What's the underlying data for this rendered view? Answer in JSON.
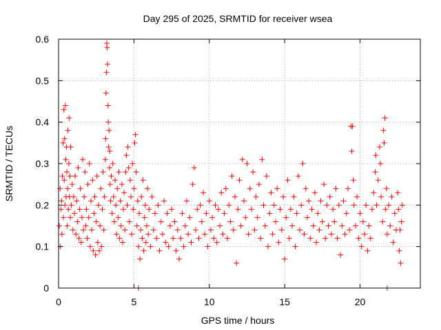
{
  "chart_data": {
    "type": "scatter",
    "title": "Day 295 of 2025, SRMTID for receiver wsea",
    "xlabel": "GPS time / hours",
    "ylabel": "SRMTID / TECUs",
    "xlim": [
      0,
      24
    ],
    "ylim": [
      0,
      0.6
    ],
    "xticks": [
      0,
      5,
      10,
      15,
      20
    ],
    "xtick_labels": [
      "0",
      "5",
      "10",
      "15",
      "20"
    ],
    "yticks": [
      0,
      0.1,
      0.2,
      0.3,
      0.4,
      0.5,
      0.6
    ],
    "ytick_labels": [
      "0",
      "0.1",
      "0.2",
      "0.3",
      "0.4",
      "0.5",
      "0.6"
    ],
    "grid": true,
    "marker": "+",
    "series": [
      {
        "name": "SRMTID",
        "color": "#ff0000",
        "points": [
          [
            0.05,
            0.15
          ],
          [
            0.1,
            0.24
          ],
          [
            0.12,
            0.1
          ],
          [
            0.15,
            0.19
          ],
          [
            0.2,
            0.21
          ],
          [
            0.22,
            0.13
          ],
          [
            0.25,
            0.27
          ],
          [
            0.3,
            0.35
          ],
          [
            0.32,
            0.17
          ],
          [
            0.35,
            0.43
          ],
          [
            0.38,
            0.26
          ],
          [
            0.4,
            0.36
          ],
          [
            0.42,
            0.2
          ],
          [
            0.45,
            0.44
          ],
          [
            0.48,
            0.31
          ],
          [
            0.5,
            0.22
          ],
          [
            0.52,
            0.34
          ],
          [
            0.55,
            0.28
          ],
          [
            0.58,
            0.15
          ],
          [
            0.6,
            0.24
          ],
          [
            0.62,
            0.38
          ],
          [
            0.65,
            0.19
          ],
          [
            0.68,
            0.3
          ],
          [
            0.7,
            0.41
          ],
          [
            0.72,
            0.22
          ],
          [
            0.75,
            0.27
          ],
          [
            0.78,
            0.17
          ],
          [
            0.8,
            0.34
          ],
          [
            0.85,
            0.2
          ],
          [
            0.9,
            0.25
          ],
          [
            0.95,
            0.14
          ],
          [
            1.0,
            0.22
          ],
          [
            1.05,
            0.18
          ],
          [
            1.1,
            0.27
          ],
          [
            1.15,
            0.13
          ],
          [
            1.2,
            0.21
          ],
          [
            1.25,
            0.16
          ],
          [
            1.3,
            0.29
          ],
          [
            1.35,
            0.12
          ],
          [
            1.4,
            0.19
          ],
          [
            1.45,
            0.24
          ],
          [
            1.5,
            0.11
          ],
          [
            1.55,
            0.17
          ],
          [
            1.6,
            0.31
          ],
          [
            1.65,
            0.14
          ],
          [
            1.7,
            0.22
          ],
          [
            1.75,
            0.28
          ],
          [
            1.8,
            0.15
          ],
          [
            1.85,
            0.19
          ],
          [
            1.9,
            0.12
          ],
          [
            1.95,
            0.25
          ],
          [
            2.0,
            0.17
          ],
          [
            2.05,
            0.3
          ],
          [
            2.1,
            0.1
          ],
          [
            2.15,
            0.21
          ],
          [
            2.2,
            0.14
          ],
          [
            2.25,
            0.26
          ],
          [
            2.3,
            0.09
          ],
          [
            2.35,
            0.18
          ],
          [
            2.4,
            0.22
          ],
          [
            2.45,
            0.08
          ],
          [
            2.5,
            0.16
          ],
          [
            2.55,
            0.27
          ],
          [
            2.6,
            0.11
          ],
          [
            2.65,
            0.2
          ],
          [
            2.7,
            0.09
          ],
          [
            2.75,
            0.15
          ],
          [
            2.8,
            0.24
          ],
          [
            2.85,
            0.1
          ],
          [
            2.9,
            0.19
          ],
          [
            2.95,
            0.28
          ],
          [
            3.0,
            0.14
          ],
          [
            3.05,
            0.22
          ],
          [
            3.1,
            0.31
          ],
          [
            3.12,
            0.36
          ],
          [
            3.15,
            0.47
          ],
          [
            3.18,
            0.52
          ],
          [
            3.2,
            0.59
          ],
          [
            3.22,
            0.58
          ],
          [
            3.25,
            0.54
          ],
          [
            3.28,
            0.44
          ],
          [
            3.3,
            0.4
          ],
          [
            3.32,
            0.34
          ],
          [
            3.35,
            0.38
          ],
          [
            3.38,
            0.29
          ],
          [
            3.4,
            0.33
          ],
          [
            3.42,
            0.25
          ],
          [
            3.45,
            0.21
          ],
          [
            3.5,
            0.27
          ],
          [
            3.55,
            0.18
          ],
          [
            3.6,
            0.3
          ],
          [
            3.65,
            0.22
          ],
          [
            3.7,
            0.16
          ],
          [
            3.75,
            0.26
          ],
          [
            3.8,
            0.2
          ],
          [
            3.85,
            0.13
          ],
          [
            3.9,
            0.24
          ],
          [
            3.95,
            0.17
          ],
          [
            4.0,
            0.28
          ],
          [
            4.05,
            0.12
          ],
          [
            4.1,
            0.21
          ],
          [
            4.15,
            0.15
          ],
          [
            4.2,
            0.25
          ],
          [
            4.25,
            0.11
          ],
          [
            4.3,
            0.19
          ],
          [
            4.35,
            0.23
          ],
          [
            4.4,
            0.14
          ],
          [
            4.45,
            0.28
          ],
          [
            4.5,
            0.32
          ],
          [
            4.55,
            0.2
          ],
          [
            4.6,
            0.34
          ],
          [
            4.65,
            0.29
          ],
          [
            4.7,
            0.16
          ],
          [
            4.75,
            0.26
          ],
          [
            4.8,
            0.22
          ],
          [
            4.85,
            0.13
          ],
          [
            4.9,
            0.3
          ],
          [
            4.95,
            0.19
          ],
          [
            5.0,
            0.24
          ],
          [
            5.05,
            0.35
          ],
          [
            5.1,
            0.37
          ],
          [
            5.15,
            0.28
          ],
          [
            5.2,
            0.15
          ],
          [
            5.25,
            0.21
          ],
          [
            5.3,
            0.1
          ],
          [
            5.35,
            0.18
          ],
          [
            5.4,
            0.07
          ],
          [
            5.45,
            0.14
          ],
          [
            5.5,
            0.22
          ],
          [
            5.55,
            0.12
          ],
          [
            5.6,
            0.26
          ],
          [
            5.65,
            0.09
          ],
          [
            5.7,
            0.17
          ],
          [
            5.75,
            0.2
          ],
          [
            5.8,
            0.11
          ],
          [
            5.85,
            0.15
          ],
          [
            5.9,
            0.24
          ],
          [
            5.95,
            0.13
          ],
          [
            6.0,
            0.19
          ],
          [
            6.1,
            0.1
          ],
          [
            6.2,
            0.22
          ],
          [
            6.3,
            0.14
          ],
          [
            6.4,
            0.18
          ],
          [
            6.5,
            0.12
          ],
          [
            6.6,
            0.2
          ],
          [
            6.7,
            0.09
          ],
          [
            6.8,
            0.16
          ],
          [
            6.9,
            0.13
          ],
          [
            7.0,
            0.21
          ],
          [
            7.1,
            0.11
          ],
          [
            7.2,
            0.18
          ],
          [
            7.3,
            0.1
          ],
          [
            7.4,
            0.15
          ],
          [
            7.5,
            0.19
          ],
          [
            7.6,
            0.12
          ],
          [
            7.7,
            0.16
          ],
          [
            7.8,
            0.09
          ],
          [
            7.9,
            0.14
          ],
          [
            8.0,
            0.07
          ],
          [
            8.1,
            0.12
          ],
          [
            8.2,
            0.18
          ],
          [
            8.3,
            0.1
          ],
          [
            8.4,
            0.15
          ],
          [
            8.5,
            0.21
          ],
          [
            8.6,
            0.13
          ],
          [
            8.7,
            0.17
          ],
          [
            8.8,
            0.11
          ],
          [
            8.9,
            0.25
          ],
          [
            9.0,
            0.29
          ],
          [
            9.1,
            0.14
          ],
          [
            9.2,
            0.19
          ],
          [
            9.3,
            0.12
          ],
          [
            9.4,
            0.2
          ],
          [
            9.5,
            0.16
          ],
          [
            9.6,
            0.23
          ],
          [
            9.7,
            0.13
          ],
          [
            9.8,
            0.18
          ],
          [
            9.9,
            0.1
          ],
          [
            10.0,
            0.21
          ],
          [
            10.1,
            0.14
          ],
          [
            10.2,
            0.17
          ],
          [
            10.3,
            0.12
          ],
          [
            10.4,
            0.2
          ],
          [
            10.5,
            0.11
          ],
          [
            10.6,
            0.19
          ],
          [
            10.7,
            0.15
          ],
          [
            10.8,
            0.23
          ],
          [
            10.9,
            0.13
          ],
          [
            11.0,
            0.18
          ],
          [
            11.1,
            0.24
          ],
          [
            11.2,
            0.12
          ],
          [
            11.3,
            0.2
          ],
          [
            11.4,
            0.16
          ],
          [
            11.5,
            0.27
          ],
          [
            11.6,
            0.14
          ],
          [
            11.7,
            0.22
          ],
          [
            11.8,
            0.06
          ],
          [
            11.9,
            0.19
          ],
          [
            12.0,
            0.26
          ],
          [
            12.1,
            0.15
          ],
          [
            12.2,
            0.31
          ],
          [
            12.3,
            0.21
          ],
          [
            12.4,
            0.17
          ],
          [
            12.5,
            0.3
          ],
          [
            12.6,
            0.13
          ],
          [
            12.7,
            0.24
          ],
          [
            12.8,
            0.19
          ],
          [
            12.9,
            0.28
          ],
          [
            13.0,
            0.14
          ],
          [
            13.1,
            0.22
          ],
          [
            13.2,
            0.17
          ],
          [
            13.3,
            0.25
          ],
          [
            13.4,
            0.12
          ],
          [
            13.5,
            0.31
          ],
          [
            13.6,
            0.2
          ],
          [
            13.7,
            0.15
          ],
          [
            13.8,
            0.27
          ],
          [
            13.9,
            0.1
          ],
          [
            14.0,
            0.18
          ],
          [
            14.1,
            0.23
          ],
          [
            14.2,
            0.13
          ],
          [
            14.3,
            0.2
          ],
          [
            14.4,
            0.16
          ],
          [
            14.5,
            0.24
          ],
          [
            14.6,
            0.11
          ],
          [
            14.7,
            0.19
          ],
          [
            14.8,
            0.14
          ],
          [
            14.9,
            0.22
          ],
          [
            15.0,
            0.07
          ],
          [
            15.1,
            0.17
          ],
          [
            15.2,
            0.26
          ],
          [
            15.3,
            0.12
          ],
          [
            15.4,
            0.19
          ],
          [
            15.5,
            0.15
          ],
          [
            15.6,
            0.22
          ],
          [
            15.7,
            0.1
          ],
          [
            15.8,
            0.18
          ],
          [
            15.9,
            0.27
          ],
          [
            16.0,
            0.14
          ],
          [
            16.1,
            0.2
          ],
          [
            16.2,
            0.3
          ],
          [
            16.3,
            0.13
          ],
          [
            16.4,
            0.24
          ],
          [
            16.5,
            0.17
          ],
          [
            16.6,
            0.21
          ],
          [
            16.7,
            0.12
          ],
          [
            16.8,
            0.19
          ],
          [
            16.9,
            0.15
          ],
          [
            17.0,
            0.23
          ],
          [
            17.1,
            0.11
          ],
          [
            17.2,
            0.18
          ],
          [
            17.3,
            0.14
          ],
          [
            17.4,
            0.21
          ],
          [
            17.5,
            0.16
          ],
          [
            17.6,
            0.25
          ],
          [
            17.7,
            0.12
          ],
          [
            17.8,
            0.2
          ],
          [
            17.9,
            0.15
          ],
          [
            18.0,
            0.22
          ],
          [
            18.1,
            0.13
          ],
          [
            18.2,
            0.19
          ],
          [
            18.3,
            0.16
          ],
          [
            18.4,
            0.24
          ],
          [
            18.5,
            0.12
          ],
          [
            18.6,
            0.2
          ],
          [
            18.7,
            0.08
          ],
          [
            18.8,
            0.15
          ],
          [
            18.9,
            0.21
          ],
          [
            19.0,
            0.13
          ],
          [
            19.1,
            0.18
          ],
          [
            19.2,
            0.24
          ],
          [
            19.3,
            0.14
          ],
          [
            19.4,
            0.39
          ],
          [
            19.45,
            0.33
          ],
          [
            19.5,
            0.39
          ],
          [
            19.55,
            0.26
          ],
          [
            19.6,
            0.2
          ],
          [
            19.7,
            0.15
          ],
          [
            19.8,
            0.22
          ],
          [
            19.9,
            0.12
          ],
          [
            20.0,
            0.18
          ],
          [
            20.1,
            0.1
          ],
          [
            20.2,
            0.16
          ],
          [
            20.3,
            0.13
          ],
          [
            20.4,
            0.2
          ],
          [
            20.5,
            0.09
          ],
          [
            20.6,
            0.15
          ],
          [
            20.7,
            0.12
          ],
          [
            20.8,
            0.19
          ],
          [
            20.9,
            0.23
          ],
          [
            21.0,
            0.28
          ],
          [
            21.05,
            0.32
          ],
          [
            21.1,
            0.2
          ],
          [
            21.2,
            0.26
          ],
          [
            21.3,
            0.34
          ],
          [
            21.35,
            0.3
          ],
          [
            21.4,
            0.22
          ],
          [
            21.5,
            0.16
          ],
          [
            21.55,
            0.38
          ],
          [
            21.6,
            0.35
          ],
          [
            21.65,
            0.41
          ],
          [
            21.7,
            0.19
          ],
          [
            21.75,
            0.24
          ],
          [
            21.8,
            0.13
          ],
          [
            21.9,
            0.2
          ],
          [
            22.0,
            0.15
          ],
          [
            22.1,
            0.22
          ],
          [
            22.2,
            0.11
          ],
          [
            22.3,
            0.18
          ],
          [
            22.4,
            0.14
          ],
          [
            22.5,
            0.23
          ],
          [
            22.55,
            0.19
          ],
          [
            22.6,
            0.09
          ],
          [
            22.65,
            0.14
          ],
          [
            22.7,
            0.06
          ],
          [
            22.75,
            0.16
          ],
          [
            22.8,
            0.2
          ],
          [
            5.3,
            0.0
          ],
          [
            21.8,
            0.0
          ]
        ]
      }
    ]
  }
}
